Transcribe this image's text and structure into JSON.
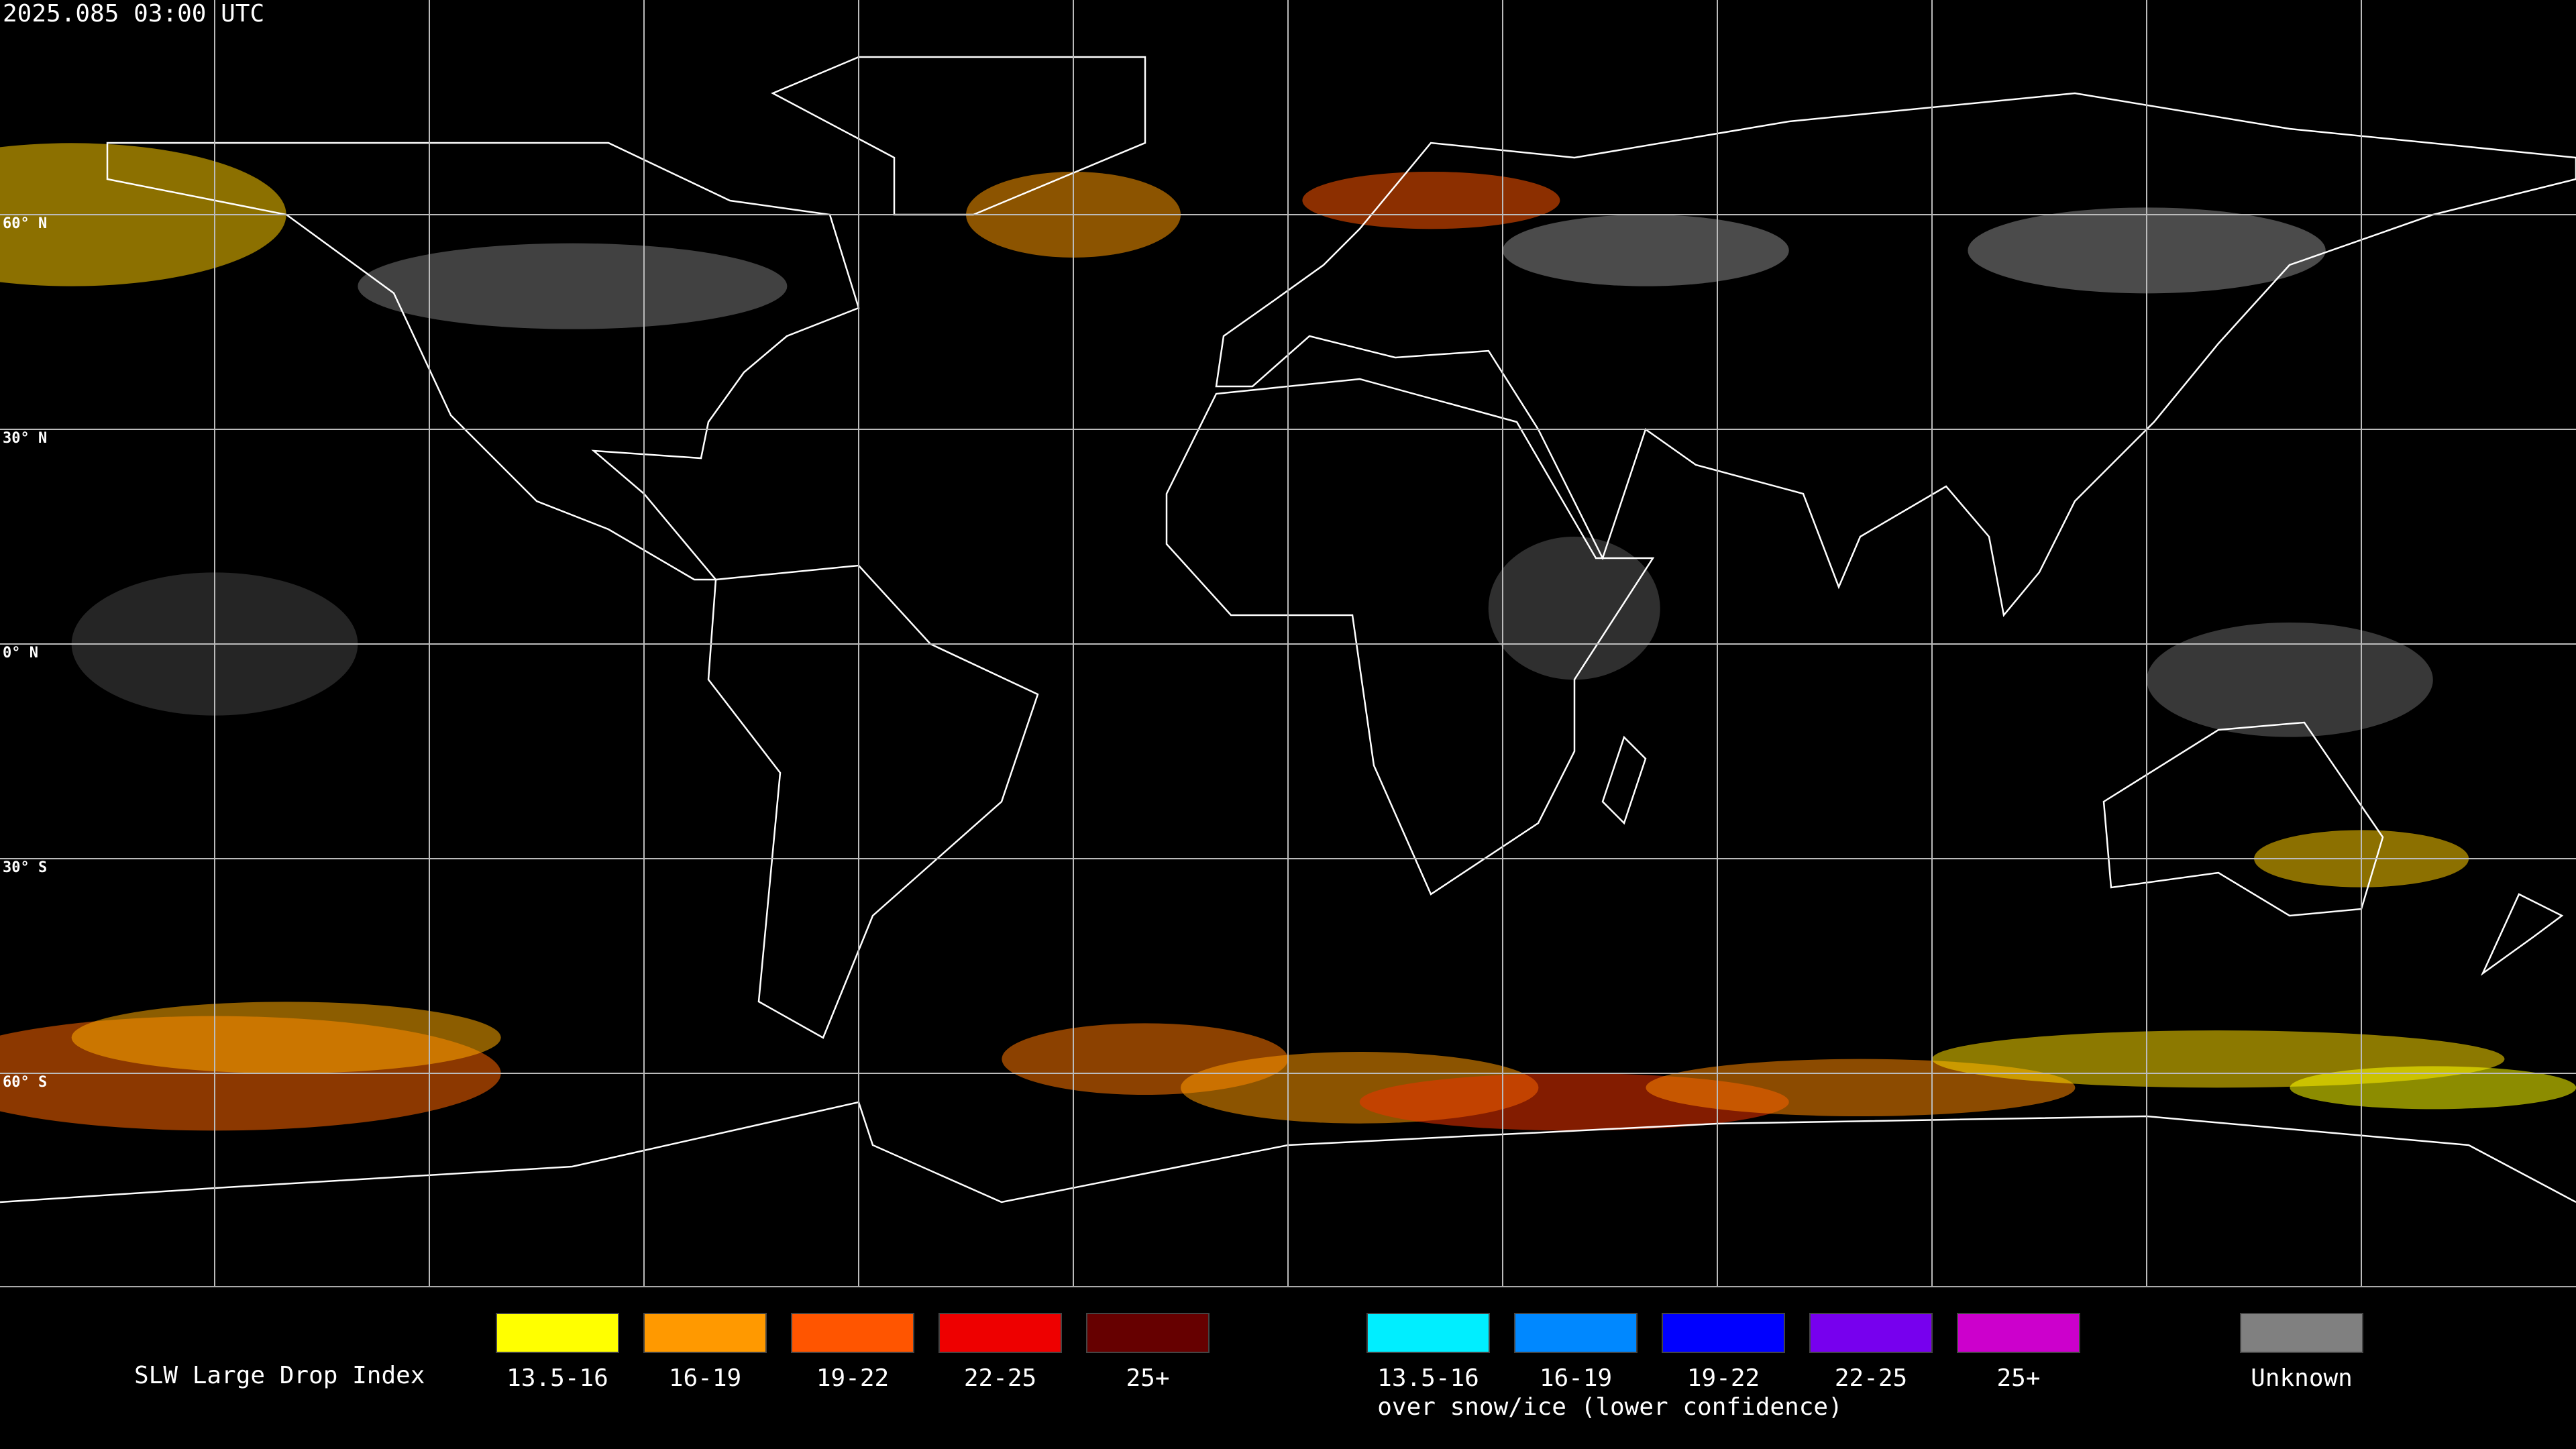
{
  "header": {
    "timestamp": "2025.085 03:00 UTC"
  },
  "map": {
    "latitude_labels": [
      "60° N",
      "30° N",
      "0° N",
      "30° S",
      "60° S"
    ]
  },
  "legend": {
    "title": "SLW Large Drop Index",
    "standard": [
      {
        "label": "13.5-16",
        "color": "#ffff00"
      },
      {
        "label": "16-19",
        "color": "#ff9900"
      },
      {
        "label": "19-22",
        "color": "#ff5500"
      },
      {
        "label": "22-25",
        "color": "#ee0000"
      },
      {
        "label": "25+",
        "color": "#660000"
      }
    ],
    "snow_ice": [
      {
        "label": "13.5-16",
        "color": "#00eeff"
      },
      {
        "label": "16-19",
        "color": "#0088ff"
      },
      {
        "label": "19-22",
        "color": "#0000ff"
      },
      {
        "label": "22-25",
        "color": "#7700ee"
      },
      {
        "label": "25+",
        "color": "#cc00cc"
      }
    ],
    "snow_ice_note": "over snow/ice (lower confidence)",
    "unknown": {
      "label": "Unknown",
      "color": "#808080"
    }
  }
}
